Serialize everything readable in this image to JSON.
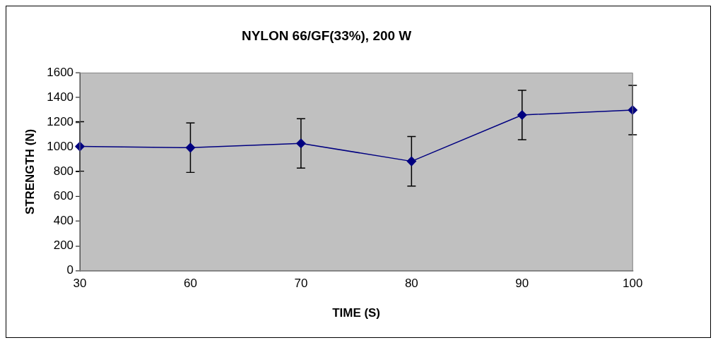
{
  "chart_data": {
    "type": "line",
    "title": "NYLON 66/GF(33%), 200 W",
    "xlabel": "TIME (S)",
    "ylabel": "STRENGTH (N)",
    "categories": [
      "30",
      "60",
      "70",
      "80",
      "90",
      "100"
    ],
    "values": [
      1005,
      995,
      1030,
      885,
      1260,
      1300
    ],
    "errors": [
      200,
      200,
      200,
      200,
      200,
      200
    ],
    "color": "#000080",
    "marker": "diamond",
    "line_style": "solid",
    "ylim": [
      0,
      1600
    ],
    "yticks": [
      0,
      200,
      400,
      600,
      800,
      1000,
      1200,
      1400,
      1600
    ],
    "grid": false,
    "legend": false
  }
}
